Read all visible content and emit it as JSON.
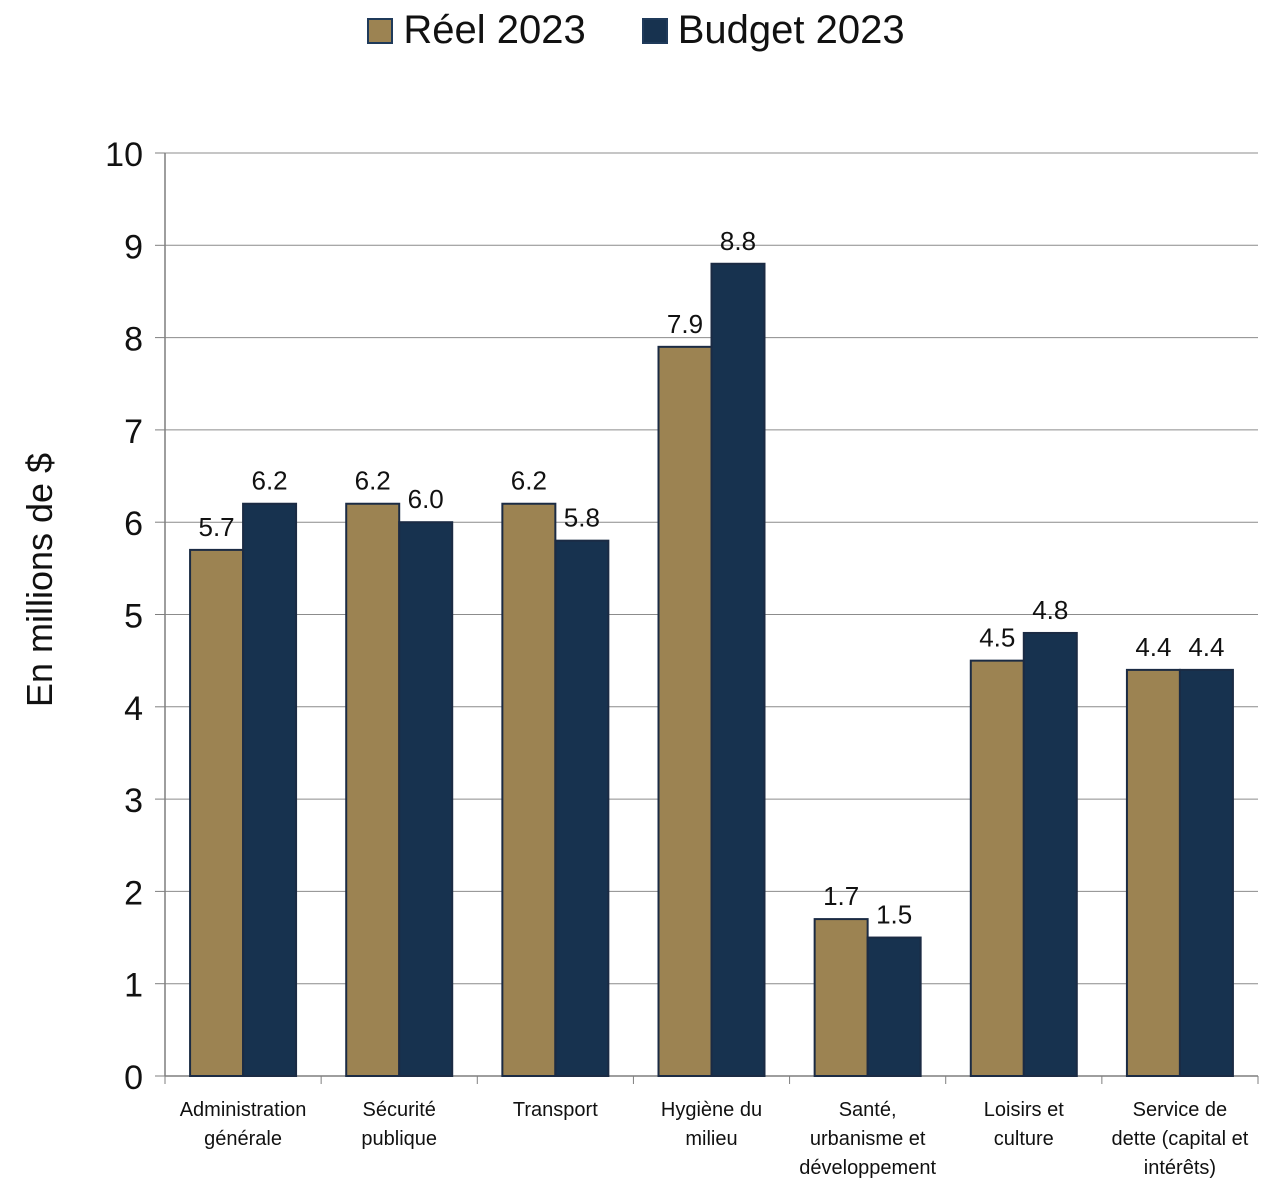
{
  "chart_data": {
    "type": "bar",
    "title": "",
    "xlabel": "",
    "ylabel": "En millions de $",
    "ylim": [
      0,
      10
    ],
    "yticks": [
      0,
      1,
      2,
      3,
      4,
      5,
      6,
      7,
      8,
      9,
      10
    ],
    "grid": true,
    "legend_position": "top-center",
    "categories": [
      [
        "Administration",
        "générale"
      ],
      [
        "Sécurité",
        "publique"
      ],
      [
        "Transport"
      ],
      [
        "Hygiène du",
        "milieu"
      ],
      [
        "Santé,",
        "urbanisme et",
        "développement"
      ],
      [
        "Loisirs et",
        "culture"
      ],
      [
        "Service de",
        "dette (capital et",
        "intérêts)"
      ]
    ],
    "series": [
      {
        "name": "Réel 2023",
        "color": "#9c8352",
        "values": [
          5.7,
          6.2,
          6.2,
          7.9,
          1.7,
          4.5,
          4.4
        ],
        "labels": [
          "5.7",
          "6.2",
          "6.2",
          "7.9",
          "1.7",
          "4.5",
          "4.4"
        ]
      },
      {
        "name": "Budget 2023",
        "color": "#17324f",
        "values": [
          6.2,
          6.0,
          5.8,
          8.8,
          1.5,
          4.8,
          4.4
        ],
        "labels": [
          "6.2",
          "6.0",
          "5.8",
          "8.8",
          "1.5",
          "4.8",
          "4.4"
        ]
      }
    ]
  }
}
